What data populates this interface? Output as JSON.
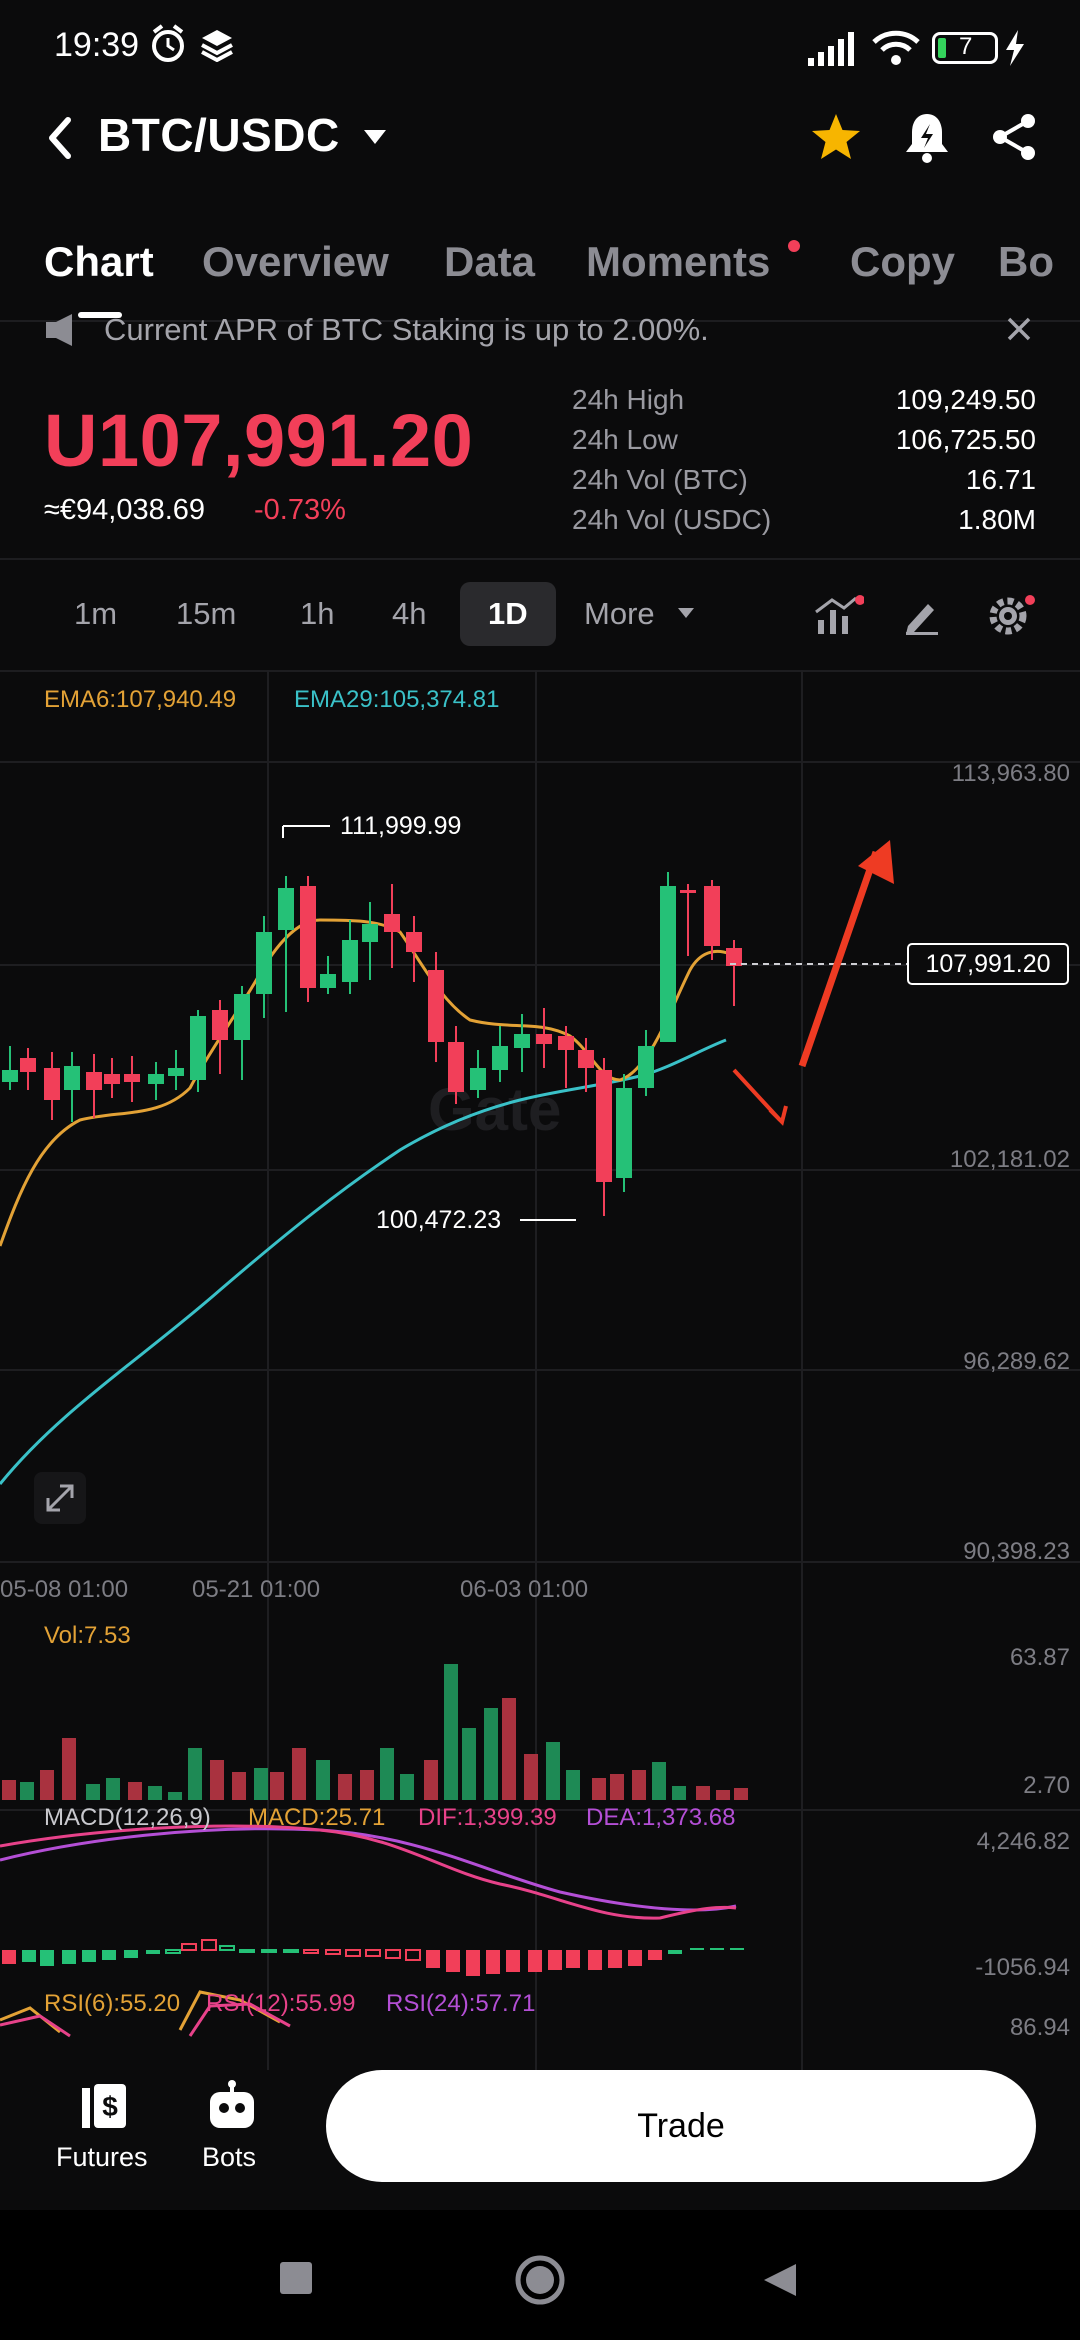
{
  "status_bar": {
    "time": "19:39",
    "battery": "7"
  },
  "header": {
    "pair": "BTC/USDC"
  },
  "tabs": [
    "Chart",
    "Overview",
    "Data",
    "Moments",
    "Copy",
    "Bo"
  ],
  "announcement": "Current APR of BTC Staking is up to 2.00%.",
  "price": {
    "last": "U107,991.20",
    "fiat": "≈€94,038.69",
    "change": "-0.73%"
  },
  "stats": [
    {
      "label": "24h High",
      "value": "109,249.50"
    },
    {
      "label": "24h Low",
      "value": "106,725.50"
    },
    {
      "label": "24h Vol (BTC)",
      "value": "16.71"
    },
    {
      "label": "24h Vol (USDC)",
      "value": "1.80M"
    }
  ],
  "intervals": [
    "1m",
    "15m",
    "1h",
    "4h",
    "1D",
    "More"
  ],
  "active_interval": "1D",
  "chart_data": {
    "type": "candlestick",
    "ema6": "EMA6:107,940.49",
    "ema29": "EMA29:105,374.81",
    "y_ticks": [
      "113,963.80",
      "102,181.02",
      "96,289.62",
      "90,398.23"
    ],
    "ylim": [
      90398.23,
      113963.8
    ],
    "x_ticks": [
      "05-08 01:00",
      "05-21 01:00",
      "06-03 01:00"
    ],
    "high_label": "111,999.99",
    "low_label": "100,472.23",
    "current_label": "107,991.20",
    "watermark": "Gate",
    "colors": {
      "up": "#25c177",
      "down": "#f23f59",
      "ema6": "#e3a236",
      "ema29": "#3ac1c8"
    }
  },
  "volume": {
    "label": "Vol:7.53",
    "ticks": [
      "63.87",
      "2.70"
    ]
  },
  "macd": {
    "title": "MACD(12,26,9)",
    "macd": "MACD:25.71",
    "dif": "DIF:1,399.39",
    "dea": "DEA:1,373.68",
    "ticks": [
      "4,246.82",
      "-1056.94"
    ]
  },
  "rsi": {
    "r6": "RSI(6):55.20",
    "r12": "RSI(12):55.99",
    "r24": "RSI(24):57.71",
    "tick": "86.94"
  },
  "bottom": {
    "futures": "Futures",
    "bots": "Bots",
    "trade": "Trade"
  }
}
